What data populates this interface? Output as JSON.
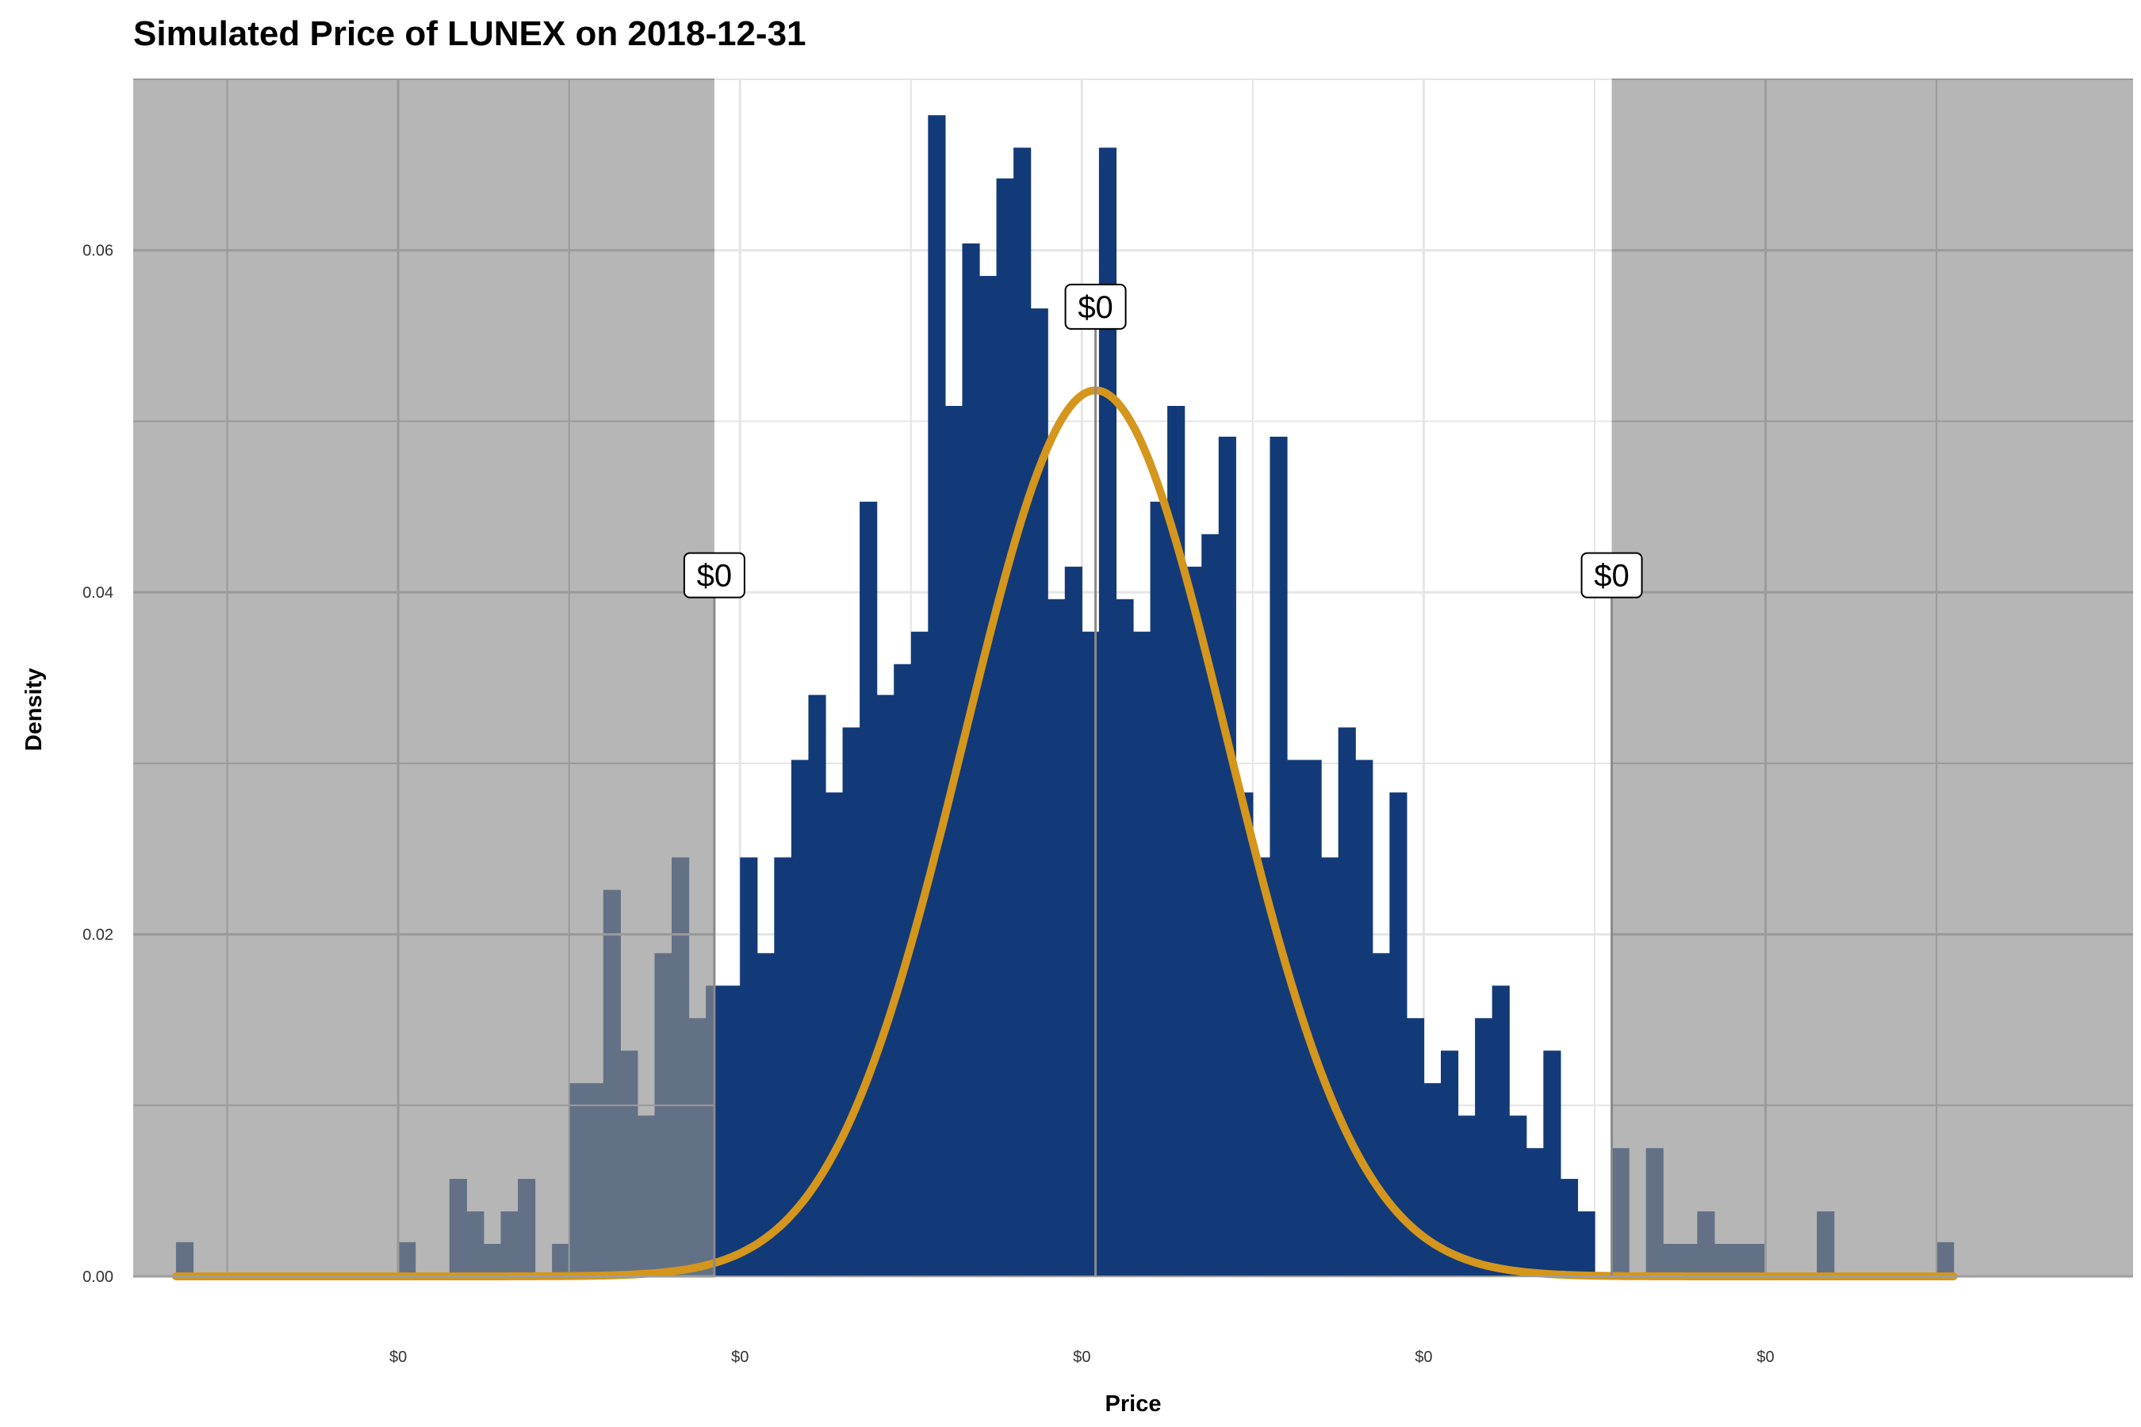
{
  "chart_data": {
    "type": "bar",
    "subtype": "histogram-with-density-curve",
    "title": "Simulated Price of LUNEX on 2018-12-31",
    "xlabel": "Price",
    "ylabel": "Density",
    "ylim": [
      0,
      0.07
    ],
    "xlim": [
      -5.55,
      6.15
    ],
    "y_ticks": [
      0.0,
      0.02,
      0.04,
      0.06
    ],
    "y_tick_labels": [
      "0.00",
      "0.02",
      "0.04",
      "0.06"
    ],
    "x_ticks": [
      -4,
      -2,
      0,
      2,
      4
    ],
    "x_tick_labels": [
      "$0",
      "$0",
      "$0",
      "$0",
      "$0"
    ],
    "grid": true,
    "bin_start": -5.3,
    "bin_width": 0.1,
    "bin_values": [
      0.002,
      0,
      0,
      0,
      0,
      0,
      0,
      0,
      0,
      0,
      0,
      0,
      0,
      0.002,
      0,
      0,
      0.0057,
      0.0038,
      0.0019,
      0.0038,
      0.0057,
      0,
      0.0019,
      0.0113,
      0.0113,
      0.0226,
      0.0132,
      0.0094,
      0.0189,
      0.0245,
      0.0151,
      0.017,
      0.017,
      0.0245,
      0.0189,
      0.0245,
      0.0302,
      0.034,
      0.0283,
      0.0321,
      0.0453,
      0.034,
      0.0358,
      0.0377,
      0.0679,
      0.0509,
      0.0604,
      0.0585,
      0.0642,
      0.066,
      0.0566,
      0.0396,
      0.0415,
      0.0377,
      0.066,
      0.0396,
      0.0377,
      0.0453,
      0.0509,
      0.0415,
      0.0434,
      0.0491,
      0.0283,
      0.0245,
      0.0491,
      0.0302,
      0.0302,
      0.0245,
      0.0321,
      0.0302,
      0.0189,
      0.0283,
      0.0151,
      0.0113,
      0.0132,
      0.0094,
      0.0151,
      0.017,
      0.0094,
      0.0075,
      0.0132,
      0.0057,
      0.0038,
      0,
      0.0075,
      0,
      0.0075,
      0.0019,
      0.0019,
      0.0038,
      0.0019,
      0.0019,
      0.0019,
      0,
      0,
      0,
      0.0038,
      0,
      0,
      0,
      0,
      0,
      0,
      0.002
    ],
    "density_curve": {
      "type": "normal",
      "mean": 0.08,
      "sd": 0.77,
      "scale": 1.0
    },
    "shaded_regions": [
      {
        "from": -5.55,
        "to": -2.15
      },
      {
        "from": 3.1,
        "to": 6.15
      }
    ],
    "annotations": [
      {
        "x": -2.15,
        "y": 0.041,
        "label": "$0"
      },
      {
        "x": 0.08,
        "y": 0.0567,
        "label": "$0"
      },
      {
        "x": 3.1,
        "y": 0.041,
        "label": "$0"
      }
    ],
    "colors": {
      "bars": "#133a78",
      "curve": "#d4961c",
      "shade": "#8f8f8f",
      "grid": "#e5e5e5",
      "marker": "#8a8a8a"
    }
  }
}
